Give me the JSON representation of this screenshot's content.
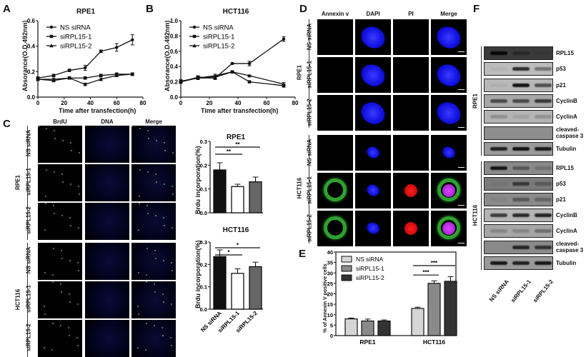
{
  "figure": {
    "panel_labels": {
      "A": "A",
      "B": "B",
      "C": "C",
      "D": "D",
      "E": "E",
      "F": "F"
    }
  },
  "panelA": {
    "title": "RPE1",
    "ylabel": "Absorance(O.D.492nm)",
    "xlabel": "Time after transfection(h)",
    "yticks": [
      "0.0",
      "0.2",
      "0.4",
      "0.6"
    ],
    "xticks": [
      "0",
      "20",
      "40",
      "60",
      "80"
    ],
    "legend": [
      "NS siRNA",
      "siRPL15-1",
      "siRPL15-2"
    ]
  },
  "panelB": {
    "title": "HCT116",
    "ylabel": "Absorance(O.D.492nm)",
    "xlabel": "Time after transfection(h)",
    "yticks": [
      "0.0",
      "0.2",
      "0.4",
      "0.6",
      "0.8",
      "1.0"
    ],
    "xticks": [
      "0",
      "20",
      "40",
      "60",
      "80"
    ],
    "legend": [
      "NS siRNA",
      "siRPL15-1",
      "siRPL15-2"
    ]
  },
  "panelC": {
    "columns": [
      "BrdU",
      "DNA",
      "Merge"
    ],
    "groups": [
      {
        "cell_line": "RPE1",
        "rows": [
          "NS siRNA",
          "siRPL15-1",
          "siRPL15-2"
        ]
      },
      {
        "cell_line": "HCT116",
        "rows": [
          "NS siRNA",
          "siRPL15-1",
          "siRPL15-2"
        ]
      }
    ],
    "bar_rpe1": {
      "title": "RPE1",
      "ylabel": "Brdu incorporation(%)",
      "yticks": [
        "0.0",
        "0.1",
        "0.2",
        "0.3"
      ],
      "sig": [
        "**",
        "**"
      ]
    },
    "bar_hct116": {
      "title": "HCT116",
      "ylabel": "Brdu incorporation(%)",
      "yticks": [
        "0.0",
        "0.1",
        "0.2",
        "0.3"
      ],
      "sig": [
        "*",
        "*"
      ],
      "xcats": [
        "NS siRNA",
        "siRPL15-1",
        "siRPL15-2"
      ]
    }
  },
  "panelD": {
    "columns": [
      "Annexin v",
      "DAPI",
      "PI",
      "Merge"
    ],
    "groups": [
      {
        "cell_line": "RPE1",
        "rows": [
          "NS siRNA",
          "siRPL15-1",
          "siRPL15-2"
        ]
      },
      {
        "cell_line": "HCT116",
        "rows": [
          "NS siRNA",
          "siRPL15-1",
          "siRPL15-2"
        ]
      }
    ]
  },
  "panelE": {
    "ylabel": "% of Annexin V positive cells",
    "yticks": [
      "0",
      "5",
      "10",
      "15",
      "20",
      "25",
      "30",
      "35",
      "40"
    ],
    "categories": [
      "RPE1",
      "HCT116"
    ],
    "legend": [
      "NS siRNA",
      "siRPL15-1",
      "siRPL15-2"
    ],
    "sig": [
      "***",
      "***"
    ]
  },
  "panelF": {
    "groups": [
      {
        "cell_line": "RPE1",
        "bands": [
          "RPL15",
          "p53",
          "p21",
          "CyclinB",
          "CyclinA",
          "cleaved-\ncaspase 3",
          "Tubulin"
        ]
      },
      {
        "cell_line": "HCT116",
        "bands": [
          "RPL15",
          "p53",
          "p21",
          "CyclinB",
          "CyclinA",
          "cleaved-\ncaspase 3",
          "Tubulin"
        ]
      }
    ],
    "lanes": [
      "NS siRNA",
      "siRPL15-1",
      "siRPL15-2"
    ]
  },
  "chart_data": [
    {
      "id": "A",
      "type": "line",
      "title": "RPE1",
      "xlabel": "Time after transfection(h)",
      "ylabel": "Absorance(O.D.492nm)",
      "xlim": [
        0,
        80
      ],
      "ylim": [
        0,
        0.6
      ],
      "x": [
        0,
        12,
        24,
        36,
        48,
        60,
        72
      ],
      "series": [
        {
          "name": "NS siRNA",
          "marker": "circle",
          "values": [
            0.15,
            0.17,
            0.21,
            0.23,
            0.36,
            0.39,
            0.45
          ],
          "err": [
            0.01,
            0.01,
            0.01,
            0.02,
            0.01,
            0.03,
            0.04
          ]
        },
        {
          "name": "siRPL15-1",
          "marker": "square",
          "values": [
            0.14,
            0.13,
            0.15,
            0.15,
            0.17,
            0.18,
            0.18
          ],
          "err": [
            0.01,
            0.01,
            0.01,
            0.01,
            0.01,
            0.01,
            0.01
          ]
        },
        {
          "name": "siRPL15-2",
          "marker": "triangle",
          "values": [
            0.14,
            0.14,
            0.15,
            0.1,
            0.14,
            0.17,
            0.18
          ],
          "err": [
            0.01,
            0.01,
            0.01,
            0.01,
            0.01,
            0.01,
            0.01
          ]
        }
      ],
      "legend_position": "upper left",
      "grid": false
    },
    {
      "id": "B",
      "type": "line",
      "title": "HCT116",
      "xlabel": "Time after transfection(h)",
      "ylabel": "Absorance(O.D.492nm)",
      "xlim": [
        0,
        80
      ],
      "ylim": [
        0,
        1.0
      ],
      "x": [
        0,
        12,
        24,
        36,
        48,
        72
      ],
      "series": [
        {
          "name": "NS siRNA",
          "marker": "circle",
          "values": [
            0.2,
            0.25,
            0.25,
            0.44,
            0.44,
            0.76
          ],
          "err": [
            0.02,
            0.02,
            0.02,
            0.01,
            0.03,
            0.03
          ]
        },
        {
          "name": "siRPL15-1",
          "marker": "square",
          "values": [
            0.2,
            0.26,
            0.26,
            0.33,
            0.2,
            0.15
          ],
          "err": [
            0.02,
            0.02,
            0.02,
            0.01,
            0.01,
            0.02
          ]
        },
        {
          "name": "siRPL15-2",
          "marker": "triangle",
          "values": [
            0.21,
            0.25,
            0.28,
            0.33,
            0.28,
            0.17
          ],
          "err": [
            0.02,
            0.02,
            0.02,
            0.01,
            0.01,
            0.02
          ]
        }
      ],
      "legend_position": "upper left",
      "grid": false
    },
    {
      "id": "C-RPE1",
      "type": "bar",
      "title": "RPE1",
      "ylabel": "Brdu incorporation(%)",
      "ylim": [
        0,
        0.3
      ],
      "categories": [
        "NS siRNA",
        "siRPL15-1",
        "siRPL15-2"
      ],
      "values": [
        0.18,
        0.11,
        0.13
      ],
      "err": [
        0.03,
        0.01,
        0.02
      ],
      "colors": [
        "#111111",
        "#ffffff",
        "#666666"
      ],
      "annotations": [
        {
          "from": 0,
          "to": 1,
          "text": "**"
        },
        {
          "from": 0,
          "to": 2,
          "text": "**"
        }
      ]
    },
    {
      "id": "C-HCT116",
      "type": "bar",
      "title": "HCT116",
      "ylabel": "Brdu incorporation(%)",
      "ylim": [
        0,
        0.3
      ],
      "categories": [
        "NS siRNA",
        "siRPL15-1",
        "siRPL15-2"
      ],
      "values": [
        0.235,
        0.16,
        0.19
      ],
      "err": [
        0.03,
        0.02,
        0.02
      ],
      "colors": [
        "#111111",
        "#ffffff",
        "#666666"
      ],
      "annotations": [
        {
          "from": 0,
          "to": 1,
          "text": "*"
        },
        {
          "from": 0,
          "to": 2,
          "text": "*"
        }
      ]
    },
    {
      "id": "E",
      "type": "bar",
      "ylabel": "% of Annexin V positive cells",
      "ylim": [
        0,
        40
      ],
      "categories": [
        "RPE1",
        "HCT116"
      ],
      "series": [
        {
          "name": "NS siRNA",
          "color": "#d6d6d6",
          "values": [
            8.0,
            13.0
          ],
          "err": [
            0.4,
            0.6
          ]
        },
        {
          "name": "siRPL15-1",
          "color": "#8a8a8a",
          "values": [
            7.0,
            25.0
          ],
          "err": [
            0.9,
            1.2
          ]
        },
        {
          "name": "siRPL15-2",
          "color": "#333333",
          "values": [
            7.0,
            26.0
          ],
          "err": [
            0.5,
            2.2
          ]
        }
      ],
      "legend_position": "upper left",
      "annotations": [
        {
          "category": "HCT116",
          "from": 0,
          "to": 1,
          "text": "***"
        },
        {
          "category": "HCT116",
          "from": 0,
          "to": 2,
          "text": "***"
        }
      ]
    }
  ]
}
